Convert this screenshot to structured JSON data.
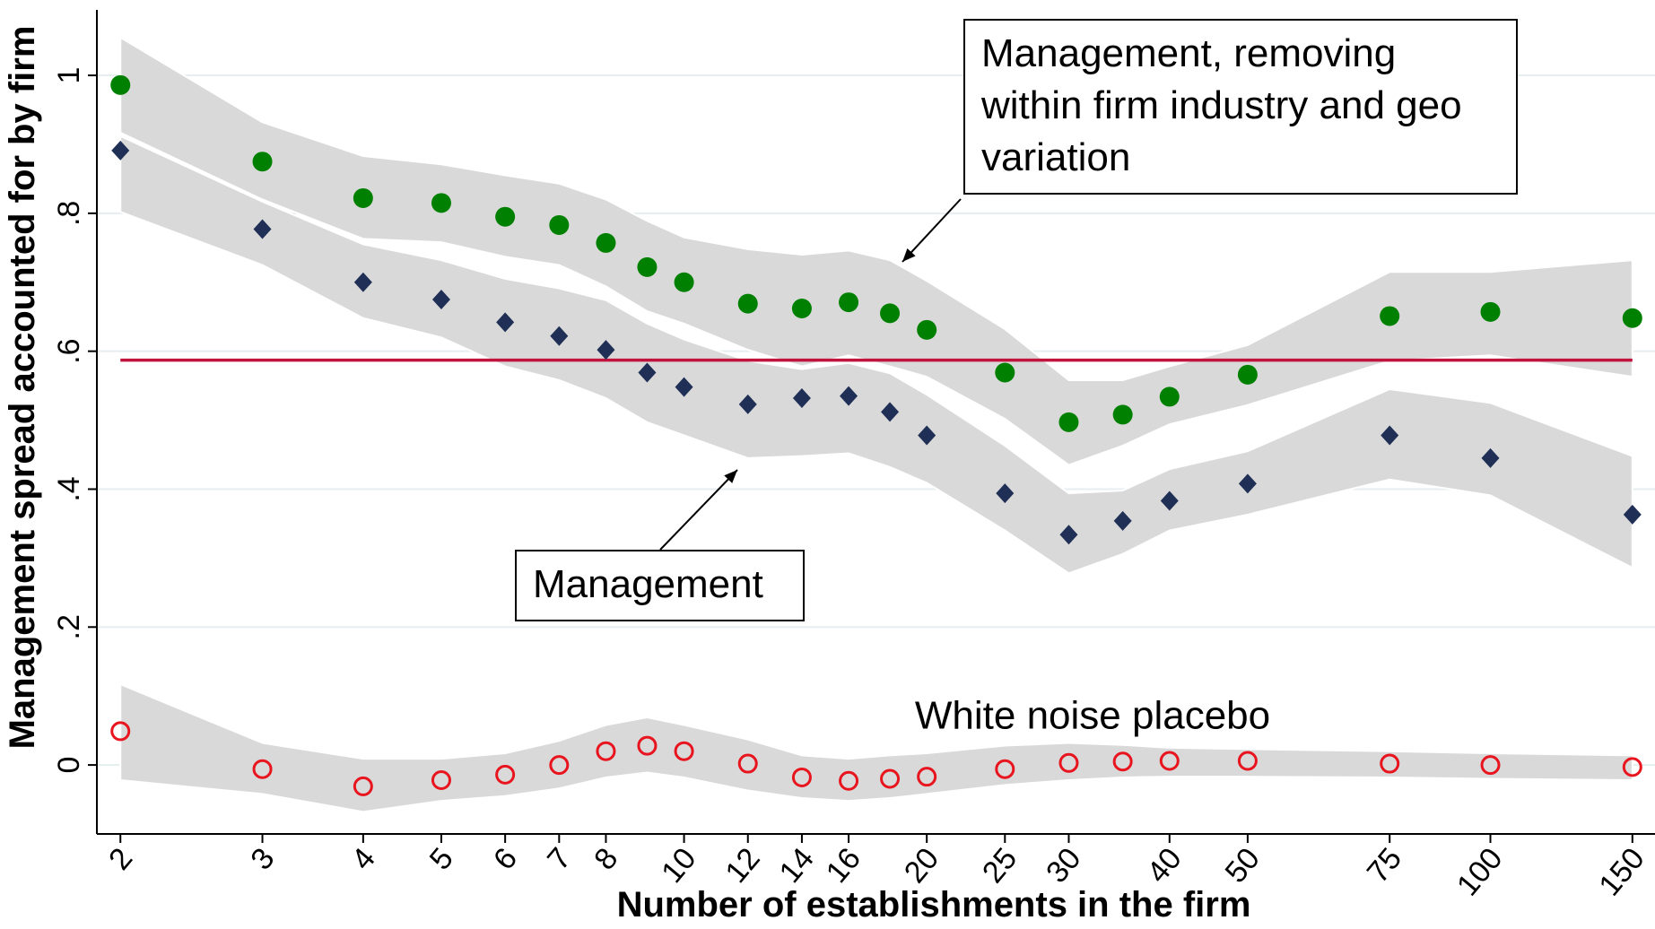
{
  "chart_data": {
    "type": "scatter",
    "x_label": "Number of establishments in the firm",
    "y_label": "Management spread accounted for by firm",
    "x_scale": "log",
    "x": [
      2,
      3,
      4,
      5,
      6,
      7,
      8,
      9,
      10,
      12,
      14,
      16,
      18,
      20,
      25,
      30,
      35,
      40,
      50,
      75,
      100,
      150
    ],
    "xlim": [
      1.87,
      160
    ],
    "xticks": [
      2,
      3,
      4,
      5,
      6,
      7,
      8,
      10,
      12,
      14,
      16,
      20,
      25,
      30,
      40,
      50,
      75,
      100,
      150
    ],
    "ylim": [
      -0.1,
      1.095
    ],
    "yticks": [
      0,
      {
        "value": 0.2,
        "label": ".2"
      },
      {
        "value": 0.4,
        "label": ".4"
      },
      {
        "value": 0.6,
        "label": ".6"
      },
      {
        "value": 0.8,
        "label": ".8"
      },
      1
    ],
    "grid": true,
    "band_color": "#d9d9d9",
    "hline": {
      "value": 0.587,
      "color": "#c0143c"
    },
    "series": [
      {
        "name": "Management, removing within firm industry and geo variation",
        "color": "#008000",
        "marker": "circle",
        "values": [
          0.986,
          0.875,
          0.822,
          0.815,
          0.795,
          0.783,
          0.757,
          0.722,
          0.7,
          0.669,
          0.662,
          0.671,
          0.655,
          0.631,
          0.569,
          0.497,
          0.508,
          0.534,
          0.566,
          0.651,
          0.657,
          0.648
        ],
        "upper": [
          1.055,
          0.932,
          0.883,
          0.871,
          0.855,
          0.843,
          0.82,
          0.789,
          0.765,
          0.748,
          0.74,
          0.746,
          0.732,
          0.702,
          0.632,
          0.558,
          0.558,
          0.578,
          0.609,
          0.715,
          0.715,
          0.732
        ],
        "lower": [
          0.917,
          0.82,
          0.763,
          0.758,
          0.737,
          0.725,
          0.694,
          0.658,
          0.64,
          0.602,
          0.578,
          0.594,
          0.578,
          0.563,
          0.502,
          0.435,
          0.463,
          0.494,
          0.522,
          0.586,
          0.594,
          0.563
        ]
      },
      {
        "name": "Management",
        "color": "#1f2f55",
        "marker": "diamond",
        "values": [
          0.891,
          0.777,
          0.7,
          0.675,
          0.642,
          0.622,
          0.602,
          0.569,
          0.548,
          0.523,
          0.532,
          0.535,
          0.512,
          0.478,
          0.394,
          0.334,
          0.354,
          0.383,
          0.408,
          0.478,
          0.445,
          0.363
        ],
        "upper": [
          0.912,
          0.817,
          0.755,
          0.732,
          0.705,
          0.691,
          0.674,
          0.64,
          0.617,
          0.586,
          0.574,
          0.583,
          0.568,
          0.537,
          0.463,
          0.394,
          0.398,
          0.429,
          0.455,
          0.545,
          0.525,
          0.448
        ],
        "lower": [
          0.802,
          0.725,
          0.648,
          0.62,
          0.578,
          0.558,
          0.532,
          0.497,
          0.478,
          0.445,
          0.448,
          0.452,
          0.432,
          0.409,
          0.34,
          0.278,
          0.306,
          0.34,
          0.363,
          0.414,
          0.391,
          0.286
        ]
      },
      {
        "name": "White noise placebo",
        "color": "#e8141e",
        "marker": "hollow-circle",
        "values": [
          0.049,
          -0.006,
          -0.031,
          -0.022,
          -0.014,
          0.0,
          0.02,
          0.028,
          0.02,
          0.002,
          -0.018,
          -0.023,
          -0.02,
          -0.017,
          -0.006,
          0.003,
          0.005,
          0.006,
          0.006,
          0.002,
          0.0,
          -0.003
        ],
        "upper": [
          0.117,
          0.032,
          0.009,
          0.009,
          0.017,
          0.035,
          0.058,
          0.069,
          0.058,
          0.037,
          0.014,
          0.009,
          0.014,
          0.017,
          0.028,
          0.032,
          0.029,
          0.025,
          0.023,
          0.02,
          0.017,
          0.014
        ],
        "lower": [
          -0.022,
          -0.042,
          -0.068,
          -0.052,
          -0.045,
          -0.034,
          -0.018,
          -0.011,
          -0.018,
          -0.037,
          -0.048,
          -0.052,
          -0.048,
          -0.042,
          -0.029,
          -0.022,
          -0.018,
          -0.017,
          -0.017,
          -0.018,
          -0.02,
          -0.022
        ]
      }
    ]
  }
}
